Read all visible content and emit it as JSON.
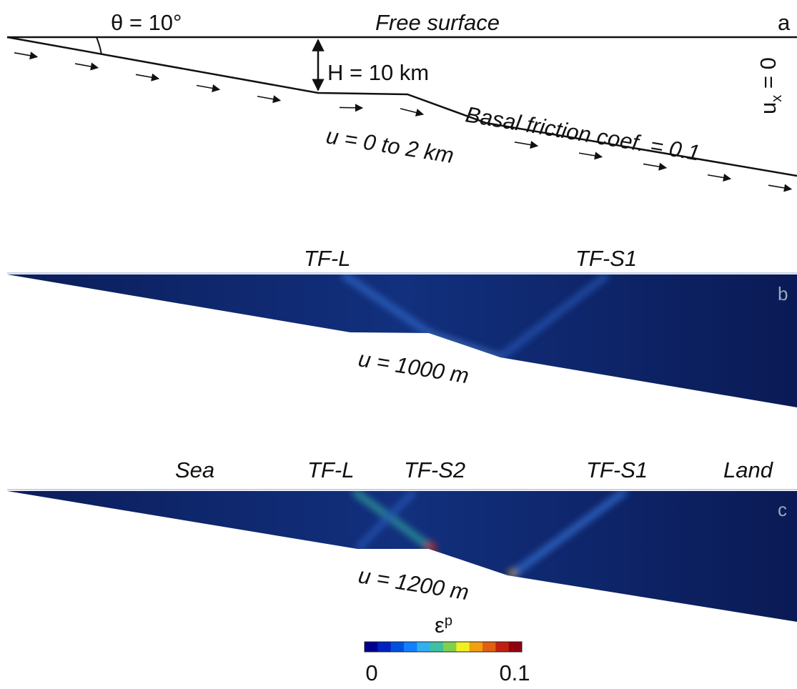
{
  "panel_a": {
    "angle": "θ = 10°",
    "top": "Free surface",
    "letter": "a",
    "thickness": "H = 10 km",
    "boundary": {
      "symbol": "u",
      "subscript": "x",
      "rest": " = 0"
    },
    "friction": "Basal friction coef. = 0.1",
    "displacement": "u = 0 to 2 km"
  },
  "panel_b": {
    "labels": [
      "TF-L",
      "TF-S1"
    ],
    "letter": "b",
    "displacement": "u = 1000 m"
  },
  "panel_c": {
    "labels": [
      "Sea",
      "TF-L",
      "TF-S2",
      "TF-S1",
      "Land"
    ],
    "letter": "c",
    "displacement": "u = 1200 m"
  },
  "colorbar": {
    "symbol": "ε",
    "superscript": "p",
    "ticks": [
      0,
      0.1
    ]
  }
}
